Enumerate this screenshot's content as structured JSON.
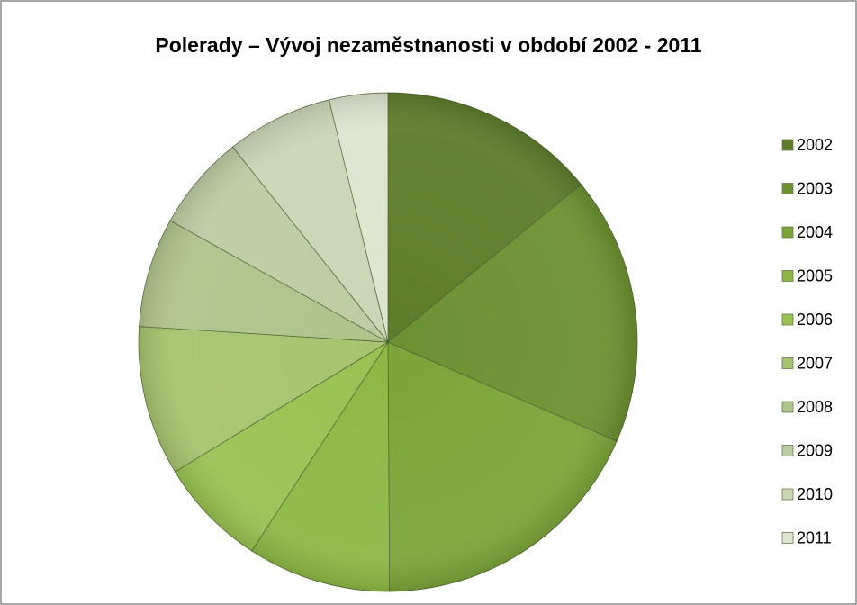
{
  "chart_data": {
    "type": "pie",
    "title": "Polerady – Vývoj nezaměstnanosti v období 2002 - 2011",
    "categories": [
      "2002",
      "2003",
      "2004",
      "2005",
      "2006",
      "2007",
      "2008",
      "2009",
      "2010",
      "2011"
    ],
    "values": [
      14.1,
      17.4,
      18.4,
      9.3,
      7.1,
      9.7,
      7.1,
      6.2,
      6.9,
      3.8
    ],
    "colors": [
      "#5e7d2b",
      "#6c9131",
      "#7ba539",
      "#8db845",
      "#98c252",
      "#a6c46f",
      "#afc48c",
      "#bccca3",
      "#cad6b6",
      "#dde5cf"
    ],
    "legend": "right"
  }
}
